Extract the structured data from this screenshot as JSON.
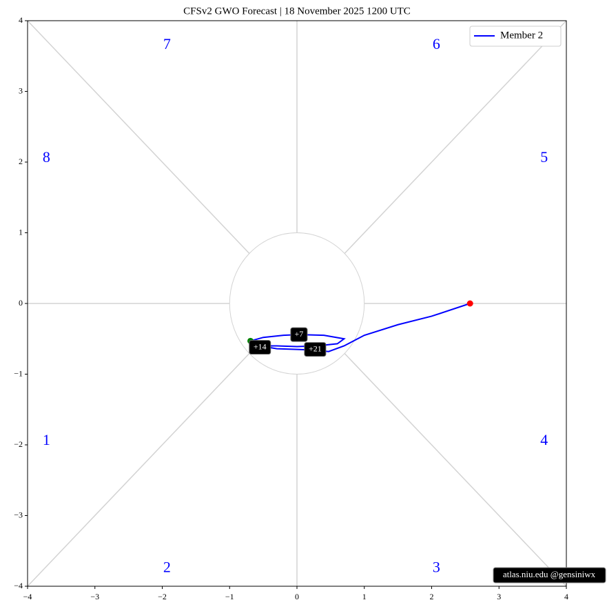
{
  "chart_data": {
    "type": "line",
    "title": "CFSv2 GWO Forecast   |   18  November  2025 1200 UTC",
    "xlim": [
      -4,
      4
    ],
    "ylim": [
      -4,
      4
    ],
    "xticks": [
      {
        "value": -4,
        "label": "−4"
      },
      {
        "value": -3,
        "label": "−3"
      },
      {
        "value": -2,
        "label": "−2"
      },
      {
        "value": -1,
        "label": "−1"
      },
      0,
      1,
      2,
      3,
      4
    ],
    "yticks": [
      {
        "value": -4,
        "label": "−4"
      },
      {
        "value": -3,
        "label": "−3"
      },
      {
        "value": -2,
        "label": "−2"
      },
      {
        "value": -1,
        "label": "−1"
      },
      0,
      1,
      2,
      3,
      4
    ],
    "series": [
      {
        "name": "Member 2",
        "color": "#0000ff",
        "x": [
          -0.69,
          -0.5,
          -0.2,
          0.03,
          0.4,
          0.7,
          0.6,
          0.3,
          0.0,
          -0.3,
          -0.55,
          -0.3,
          0.0,
          0.27,
          0.47,
          0.7,
          1.0,
          1.5,
          2.0,
          2.57
        ],
        "y": [
          -0.53,
          -0.48,
          -0.45,
          -0.44,
          -0.45,
          -0.5,
          -0.57,
          -0.6,
          -0.61,
          -0.6,
          -0.6,
          -0.64,
          -0.65,
          -0.66,
          -0.68,
          -0.6,
          -0.45,
          -0.3,
          -0.18,
          0.0
        ]
      }
    ],
    "start_marker_color": "green",
    "end_marker_color": "red",
    "legend": "upper right",
    "annotations": [
      {
        "text": "+7",
        "x": 0.03,
        "y": -0.44
      },
      {
        "text": "+14",
        "x": -0.55,
        "y": -0.62
      },
      {
        "text": "+21",
        "x": 0.27,
        "y": -0.65
      }
    ],
    "phase_labels": [
      {
        "text": "1",
        "x": -3.72,
        "y": -1.95
      },
      {
        "text": "2",
        "x": -1.93,
        "y": -3.75
      },
      {
        "text": "3",
        "x": 2.07,
        "y": -3.75
      },
      {
        "text": "4",
        "x": 3.67,
        "y": -1.95
      },
      {
        "text": "5",
        "x": 3.67,
        "y": 2.05
      },
      {
        "text": "6",
        "x": 2.07,
        "y": 3.65
      },
      {
        "text": "7",
        "x": -1.93,
        "y": 3.65
      },
      {
        "text": "8",
        "x": -3.72,
        "y": 2.05
      }
    ],
    "credit": "atlas.niu.edu  @gensiniwx"
  }
}
